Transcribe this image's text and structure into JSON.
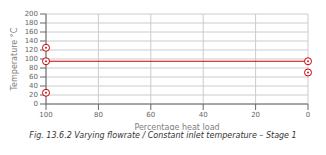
{
  "chart_data": {
    "type": "scatter",
    "xlabel": "Percentage heat load",
    "ylabel": "Temperature °C",
    "caption": "Fig. 13.6.2 Varying flowrate / Constant inlet temperature – Stage 1",
    "x": [
      100,
      100,
      100,
      0,
      0
    ],
    "values": [
      95,
      125,
      25,
      95,
      70
    ],
    "color": "#cc0000",
    "marker": "open_circle",
    "hline": {
      "y": 95,
      "color": "#cc0000"
    },
    "xlim": [
      100,
      0
    ],
    "ylim": [
      0,
      200
    ],
    "xticks": [
      100,
      80,
      60,
      40,
      20,
      0
    ],
    "yticks": [
      0,
      20,
      40,
      60,
      80,
      100,
      120,
      140,
      160,
      180,
      200
    ],
    "grid": true
  }
}
